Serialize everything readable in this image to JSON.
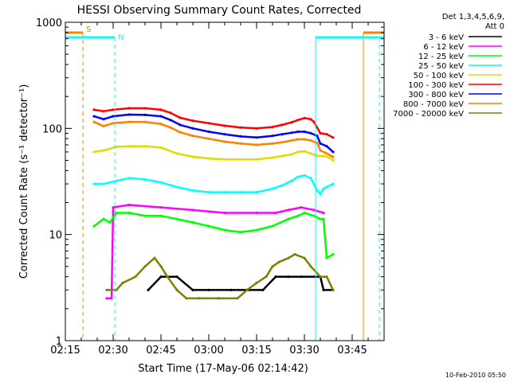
{
  "chart_data": {
    "type": "line",
    "title": "HESSI Observing Summary Count Rates, Corrected",
    "xlabel": "Start Time (17-May-06 02:14:42)",
    "ylabel": "Corrected Count Rate (s⁻¹ detector⁻¹)",
    "x_range_minutes": [
      0,
      100
    ],
    "x_ticks": [
      {
        "t": 0,
        "label": "02:15"
      },
      {
        "t": 15,
        "label": "02:30"
      },
      {
        "t": 30,
        "label": "02:45"
      },
      {
        "t": 45,
        "label": "03:00"
      },
      {
        "t": 60,
        "label": "03:15"
      },
      {
        "t": 75,
        "label": "03:30"
      },
      {
        "t": 90,
        "label": "03:45"
      }
    ],
    "y_scale": "log",
    "ylim": [
      1,
      1000
    ],
    "y_ticks": [
      {
        "v": 1,
        "label": "1"
      },
      {
        "v": 10,
        "label": "10"
      },
      {
        "v": 100,
        "label": "100"
      },
      {
        "v": 1000,
        "label": "1000"
      }
    ],
    "legend_header": [
      "Det 1,3,4,5,6,9,",
      "Att 0"
    ],
    "legend_position": "right",
    "series": [
      {
        "name": "3 - 6 keV",
        "color": "#000000",
        "points": [
          [
            26,
            3
          ],
          [
            30,
            4
          ],
          [
            35,
            4
          ],
          [
            40,
            3
          ],
          [
            45,
            3
          ],
          [
            52,
            3
          ],
          [
            57,
            3
          ],
          [
            62,
            3
          ],
          [
            66,
            4
          ],
          [
            70,
            4
          ],
          [
            74,
            4
          ],
          [
            78,
            4
          ],
          [
            80,
            4
          ],
          [
            81,
            3
          ],
          [
            84,
            3
          ]
        ]
      },
      {
        "name": "6 - 12 keV",
        "color": "#ff00ff",
        "points": [
          [
            13,
            2.5
          ],
          [
            14.5,
            2.5
          ],
          [
            15,
            18
          ],
          [
            20,
            19
          ],
          [
            30,
            18
          ],
          [
            40,
            17
          ],
          [
            50,
            16
          ],
          [
            60,
            16
          ],
          [
            66,
            16
          ],
          [
            70,
            17
          ],
          [
            74,
            18
          ],
          [
            78,
            17
          ],
          [
            81,
            16
          ]
        ]
      },
      {
        "name": "12 - 25 keV",
        "color": "#00ff00",
        "points": [
          [
            9,
            12
          ],
          [
            12,
            14
          ],
          [
            14,
            13
          ],
          [
            16,
            16
          ],
          [
            20,
            16
          ],
          [
            25,
            15
          ],
          [
            30,
            15
          ],
          [
            35,
            14
          ],
          [
            40,
            13
          ],
          [
            45,
            12
          ],
          [
            50,
            11
          ],
          [
            55,
            10.5
          ],
          [
            60,
            11
          ],
          [
            65,
            12
          ],
          [
            70,
            14
          ],
          [
            73,
            15
          ],
          [
            75,
            16
          ],
          [
            78,
            15
          ],
          [
            80,
            14
          ],
          [
            81,
            14
          ],
          [
            82,
            6
          ],
          [
            84,
            6.5
          ]
        ]
      },
      {
        "name": "25 - 50 keV",
        "color": "#00ffff",
        "points": [
          [
            9,
            30
          ],
          [
            12,
            30
          ],
          [
            16,
            32
          ],
          [
            20,
            34
          ],
          [
            25,
            33
          ],
          [
            30,
            31
          ],
          [
            35,
            28
          ],
          [
            40,
            26
          ],
          [
            45,
            25
          ],
          [
            50,
            25
          ],
          [
            55,
            25
          ],
          [
            60,
            25
          ],
          [
            65,
            27
          ],
          [
            68,
            29
          ],
          [
            71,
            32
          ],
          [
            73,
            35
          ],
          [
            75,
            36
          ],
          [
            77,
            34
          ],
          [
            79,
            26
          ],
          [
            80,
            24
          ],
          [
            81,
            27
          ],
          [
            82,
            28
          ],
          [
            84,
            30
          ]
        ]
      },
      {
        "name": "50 - 100 keV",
        "color": "#dddd00",
        "points": [
          [
            9,
            60
          ],
          [
            12,
            62
          ],
          [
            16,
            67
          ],
          [
            20,
            68
          ],
          [
            25,
            68
          ],
          [
            30,
            66
          ],
          [
            35,
            58
          ],
          [
            40,
            54
          ],
          [
            45,
            52
          ],
          [
            50,
            51
          ],
          [
            55,
            51
          ],
          [
            60,
            51
          ],
          [
            65,
            53
          ],
          [
            68,
            55
          ],
          [
            71,
            57
          ],
          [
            73,
            60
          ],
          [
            75,
            61
          ],
          [
            77,
            58
          ],
          [
            79,
            55
          ],
          [
            81,
            55
          ],
          [
            83,
            53
          ],
          [
            84,
            50
          ]
        ]
      },
      {
        "name": "100 - 300 keV",
        "color": "#ff0000",
        "points": [
          [
            9,
            150
          ],
          [
            12,
            145
          ],
          [
            15,
            150
          ],
          [
            20,
            155
          ],
          [
            25,
            155
          ],
          [
            30,
            150
          ],
          [
            33,
            140
          ],
          [
            36,
            126
          ],
          [
            40,
            118
          ],
          [
            45,
            112
          ],
          [
            50,
            106
          ],
          [
            55,
            102
          ],
          [
            60,
            100
          ],
          [
            65,
            103
          ],
          [
            68,
            108
          ],
          [
            71,
            114
          ],
          [
            73,
            120
          ],
          [
            75,
            125
          ],
          [
            77,
            122
          ],
          [
            78,
            115
          ],
          [
            80,
            90
          ],
          [
            82,
            88
          ],
          [
            84,
            82
          ]
        ]
      },
      {
        "name": "300 - 800 keV",
        "color": "#0000ff",
        "points": [
          [
            9,
            130
          ],
          [
            12,
            122
          ],
          [
            15,
            130
          ],
          [
            20,
            135
          ],
          [
            25,
            134
          ],
          [
            30,
            130
          ],
          [
            33,
            120
          ],
          [
            36,
            108
          ],
          [
            40,
            100
          ],
          [
            45,
            93
          ],
          [
            50,
            88
          ],
          [
            55,
            84
          ],
          [
            60,
            82
          ],
          [
            65,
            85
          ],
          [
            68,
            88
          ],
          [
            71,
            91
          ],
          [
            73,
            93
          ],
          [
            75,
            93
          ],
          [
            77,
            90
          ],
          [
            79,
            85
          ],
          [
            80,
            72
          ],
          [
            82,
            68
          ],
          [
            84,
            60
          ]
        ]
      },
      {
        "name": "800 - 7000 keV",
        "color": "#ff8000",
        "points": [
          [
            9,
            115
          ],
          [
            12,
            105
          ],
          [
            15,
            112
          ],
          [
            20,
            115
          ],
          [
            25,
            115
          ],
          [
            30,
            110
          ],
          [
            33,
            102
          ],
          [
            36,
            92
          ],
          [
            40,
            85
          ],
          [
            45,
            80
          ],
          [
            50,
            75
          ],
          [
            55,
            72
          ],
          [
            60,
            70
          ],
          [
            65,
            72
          ],
          [
            68,
            74
          ],
          [
            71,
            77
          ],
          [
            73,
            79
          ],
          [
            75,
            79
          ],
          [
            77,
            77
          ],
          [
            79,
            73
          ],
          [
            80,
            62
          ],
          [
            82,
            58
          ],
          [
            84,
            54
          ]
        ]
      },
      {
        "name": "7000 - 20000 keV",
        "color": "#808000",
        "points": [
          [
            13,
            3
          ],
          [
            16,
            3
          ],
          [
            18,
            3.5
          ],
          [
            22,
            4
          ],
          [
            25,
            5
          ],
          [
            28,
            6
          ],
          [
            30,
            5
          ],
          [
            32,
            4
          ],
          [
            35,
            3
          ],
          [
            38,
            2.5
          ],
          [
            42,
            2.5
          ],
          [
            48,
            2.5
          ],
          [
            54,
            2.5
          ],
          [
            57,
            3
          ],
          [
            60,
            3.5
          ],
          [
            63,
            4
          ],
          [
            65,
            5
          ],
          [
            67,
            5.5
          ],
          [
            70,
            6
          ],
          [
            72,
            6.5
          ],
          [
            75,
            6
          ],
          [
            77,
            5
          ],
          [
            80,
            4
          ],
          [
            82,
            4
          ],
          [
            84,
            3
          ]
        ]
      }
    ],
    "flags": [
      {
        "label": "S",
        "color": "#ff8000",
        "bar_ranges": [
          [
            0,
            5.5
          ],
          [
            93.5,
            100
          ]
        ],
        "level": 800,
        "lines": [
          5.5,
          93.5
        ]
      },
      {
        "label": "N",
        "color": "#00ffff",
        "bar_ranges": [
          [
            0,
            15.5
          ],
          [
            78.5,
            100
          ]
        ],
        "level": 650,
        "lines": [
          15.5,
          78.5,
          98.5
        ]
      }
    ],
    "grid": false
  },
  "footer": {
    "timestamp": "10-Feb-2010 05:50"
  }
}
